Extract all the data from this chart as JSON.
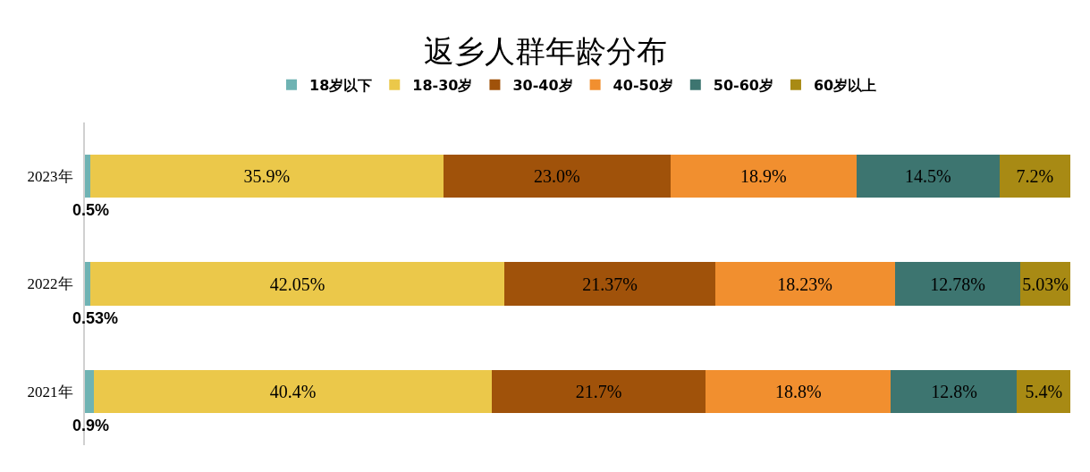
{
  "chart_data": {
    "type": "bar",
    "orientation": "horizontal",
    "stacked": true,
    "title": "返乡人群年龄分布",
    "categories": [
      "2023年",
      "2022年",
      "2021年"
    ],
    "series": [
      {
        "name": "18岁以下",
        "color": "#6fb3b3",
        "values": [
          0.5,
          0.53,
          0.9
        ],
        "value_labels": [
          "0.5%",
          "0.53%",
          "0.9%"
        ]
      },
      {
        "name": "18-30岁",
        "color": "#ebc84a",
        "values": [
          35.9,
          42.05,
          40.4
        ],
        "value_labels": [
          "35.9%",
          "42.05%",
          "40.4%"
        ]
      },
      {
        "name": "30-40岁",
        "color": "#a0520a",
        "values": [
          23.0,
          21.37,
          21.7
        ],
        "value_labels": [
          "23.0%",
          "21.37%",
          "21.7%"
        ]
      },
      {
        "name": "40-50岁",
        "color": "#f18f2f",
        "values": [
          18.9,
          18.23,
          18.8
        ],
        "value_labels": [
          "18.9%",
          "18.23%",
          "18.8%"
        ]
      },
      {
        "name": "50-60岁",
        "color": "#3d7570",
        "values": [
          14.5,
          12.78,
          12.8
        ],
        "value_labels": [
          "14.5%",
          "12.78%",
          "12.8%"
        ]
      },
      {
        "name": "60岁以上",
        "color": "#a88a14",
        "values": [
          7.2,
          5.03,
          5.4
        ],
        "value_labels": [
          "7.2%",
          "5.03%",
          "5.4%"
        ]
      }
    ],
    "xlim": [
      0,
      100
    ],
    "tick_labels": "y",
    "legend": "top"
  }
}
